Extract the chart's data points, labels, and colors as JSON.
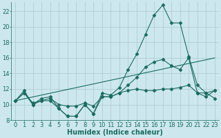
{
  "xlabel": "Humidex (Indice chaleur)",
  "xlim": [
    -0.5,
    23.5
  ],
  "ylim": [
    8,
    23.2
  ],
  "yticks": [
    8,
    10,
    12,
    14,
    16,
    18,
    20,
    22
  ],
  "xticks": [
    0,
    1,
    2,
    3,
    4,
    5,
    6,
    7,
    8,
    9,
    10,
    11,
    12,
    13,
    14,
    15,
    16,
    17,
    18,
    19,
    20,
    21,
    22,
    23
  ],
  "background_color": "#cce8ee",
  "grid_color": "#b0cdd4",
  "line_color": "#1a6b5e",
  "line1_x": [
    0,
    1,
    2,
    3,
    4,
    5,
    6,
    7,
    8,
    9,
    10,
    11,
    12,
    13,
    14,
    15,
    16,
    17,
    18,
    19,
    20,
    21,
    22,
    23
  ],
  "line1_y": [
    10.5,
    11.8,
    10.0,
    10.8,
    11.0,
    9.5,
    8.5,
    8.5,
    10.0,
    8.8,
    11.5,
    11.2,
    12.2,
    14.5,
    16.5,
    19.0,
    21.5,
    22.8,
    20.5,
    20.5,
    16.2,
    12.5,
    11.5,
    10.8
  ],
  "line2_x": [
    0,
    1,
    2,
    3,
    4,
    5,
    6,
    7,
    8,
    9,
    10,
    11,
    12,
    13,
    14,
    15,
    16,
    17,
    18,
    19,
    20,
    21,
    22,
    23
  ],
  "line2_y": [
    10.5,
    11.5,
    10.2,
    10.5,
    10.8,
    10.0,
    9.8,
    9.8,
    10.2,
    9.8,
    11.0,
    11.0,
    11.5,
    12.5,
    13.5,
    14.8,
    15.5,
    15.8,
    15.0,
    14.5,
    16.0,
    11.5,
    11.5,
    11.8
  ],
  "line3_x": [
    0,
    23
  ],
  "line3_y": [
    10.5,
    16.0
  ],
  "line4_x": [
    0,
    1,
    2,
    3,
    4,
    5,
    6,
    7,
    8,
    9,
    10,
    11,
    12,
    13,
    14,
    15,
    16,
    17,
    18,
    19,
    20,
    21,
    22,
    23
  ],
  "line4_y": [
    10.5,
    11.5,
    10.0,
    10.5,
    10.5,
    9.5,
    8.5,
    8.5,
    10.0,
    8.8,
    11.0,
    11.0,
    11.5,
    11.8,
    12.0,
    11.8,
    11.8,
    12.0,
    12.0,
    12.2,
    12.5,
    11.5,
    11.0,
    11.8
  ],
  "linewidth": 0.8,
  "marker_size": 2.5,
  "xlabel_fontsize": 7,
  "tick_fontsize": 6
}
